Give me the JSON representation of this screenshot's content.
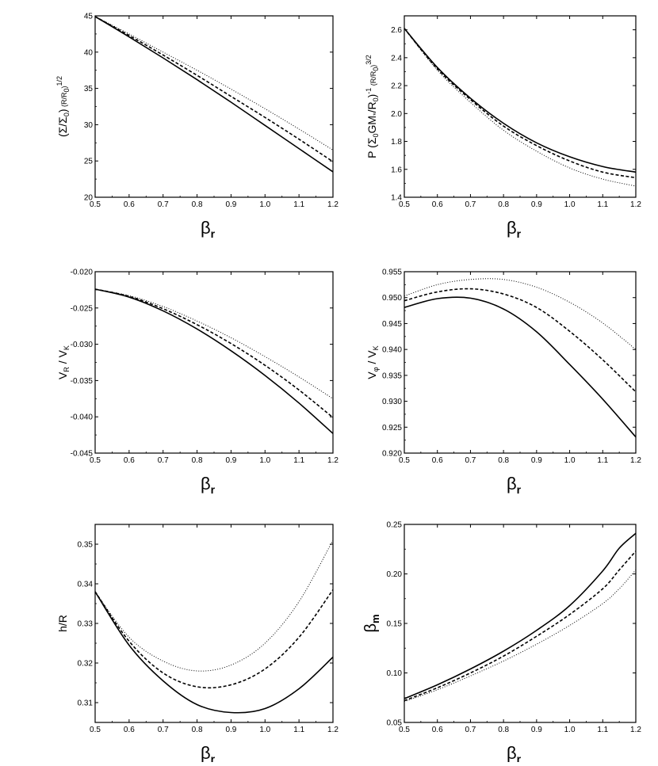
{
  "chart_data": [
    {
      "type": "line",
      "xlabel": "βr",
      "ylabel": "(Σ/Σ0) (R/R0)1/2",
      "xlim": [
        0.5,
        1.2
      ],
      "ylim": [
        20,
        45
      ],
      "xticks": [
        "0.5",
        "0.6",
        "0.7",
        "0.8",
        "0.9",
        "1.0",
        "1.1",
        "1.2"
      ],
      "yticks": [
        "20",
        "25",
        "30",
        "35",
        "40",
        "45"
      ],
      "x": [
        0.5,
        0.6,
        0.7,
        0.8,
        0.9,
        1.0,
        1.1,
        1.2
      ],
      "series": [
        {
          "style": "solid",
          "values": [
            44.9,
            42.1,
            39.2,
            36.2,
            33.1,
            29.9,
            26.7,
            23.5
          ]
        },
        {
          "style": "dashed",
          "values": [
            44.9,
            42.3,
            39.6,
            36.8,
            33.9,
            31.0,
            28.0,
            24.9
          ]
        },
        {
          "style": "dotted",
          "values": [
            44.9,
            42.5,
            40.0,
            37.5,
            34.9,
            32.2,
            29.4,
            26.5
          ]
        }
      ]
    },
    {
      "type": "line",
      "xlabel": "βr",
      "ylabel": "P (Σ0GM*/R0)-1 (R/R0)3/2",
      "xlim": [
        0.5,
        1.2
      ],
      "ylim": [
        1.4,
        2.7
      ],
      "xticks": [
        "0.5",
        "0.6",
        "0.7",
        "0.8",
        "0.9",
        "1.0",
        "1.1",
        "1.2"
      ],
      "yticks": [
        "1.4",
        "1.6",
        "1.8",
        "2.0",
        "2.2",
        "2.4",
        "2.6"
      ],
      "x": [
        0.5,
        0.6,
        0.7,
        0.8,
        0.9,
        1.0,
        1.1,
        1.2
      ],
      "series": [
        {
          "style": "solid",
          "values": [
            2.61,
            2.33,
            2.11,
            1.93,
            1.79,
            1.69,
            1.62,
            1.58
          ]
        },
        {
          "style": "dashed",
          "values": [
            2.61,
            2.32,
            2.1,
            1.91,
            1.77,
            1.66,
            1.58,
            1.54
          ]
        },
        {
          "style": "dotted",
          "values": [
            2.61,
            2.31,
            2.08,
            1.88,
            1.73,
            1.61,
            1.53,
            1.48
          ]
        }
      ]
    },
    {
      "type": "line",
      "xlabel": "βr",
      "ylabel": "VR / VK",
      "xlim": [
        0.5,
        1.2
      ],
      "ylim": [
        -0.045,
        -0.02
      ],
      "xticks": [
        "0.5",
        "0.6",
        "0.7",
        "0.8",
        "0.9",
        "1.0",
        "1.1",
        "1.2"
      ],
      "yticks": [
        "-0.045",
        "-0.040",
        "-0.035",
        "-0.030",
        "-0.025",
        "-0.020"
      ],
      "x": [
        0.5,
        0.6,
        0.7,
        0.8,
        0.9,
        1.0,
        1.1,
        1.2
      ],
      "series": [
        {
          "style": "solid",
          "values": [
            -0.0224,
            -0.0235,
            -0.0254,
            -0.0279,
            -0.0309,
            -0.0343,
            -0.0381,
            -0.0423
          ]
        },
        {
          "style": "dashed",
          "values": [
            -0.0224,
            -0.0234,
            -0.0251,
            -0.0273,
            -0.0299,
            -0.0329,
            -0.0363,
            -0.0401
          ]
        },
        {
          "style": "dotted",
          "values": [
            -0.0224,
            -0.0233,
            -0.0248,
            -0.0268,
            -0.0291,
            -0.0317,
            -0.0345,
            -0.0375
          ]
        }
      ]
    },
    {
      "type": "line",
      "xlabel": "βr",
      "ylabel": "Vφ / VK",
      "xlim": [
        0.5,
        1.2
      ],
      "ylim": [
        0.92,
        0.955
      ],
      "xticks": [
        "0.5",
        "0.6",
        "0.7",
        "0.8",
        "0.9",
        "1.0",
        "1.1",
        "1.2"
      ],
      "yticks": [
        "0.920",
        "0.925",
        "0.930",
        "0.935",
        "0.940",
        "0.945",
        "0.950",
        "0.955"
      ],
      "x": [
        0.5,
        0.6,
        0.7,
        0.8,
        0.9,
        1.0,
        1.1,
        1.2
      ],
      "series": [
        {
          "style": "solid",
          "values": [
            0.9481,
            0.9498,
            0.9499,
            0.9478,
            0.9434,
            0.9371,
            0.9304,
            0.9231
          ]
        },
        {
          "style": "dashed",
          "values": [
            0.9494,
            0.9511,
            0.9517,
            0.9507,
            0.9481,
            0.9435,
            0.938,
            0.9318
          ]
        },
        {
          "style": "dotted",
          "values": [
            0.9503,
            0.9525,
            0.9535,
            0.9535,
            0.952,
            0.9491,
            0.9451,
            0.94
          ]
        }
      ]
    },
    {
      "type": "line",
      "xlabel": "βr",
      "ylabel": "h/R",
      "xlim": [
        0.5,
        1.2
      ],
      "ylim": [
        0.305,
        0.355
      ],
      "xticks": [
        "0.5",
        "0.6",
        "0.7",
        "0.8",
        "0.9",
        "1.0",
        "1.1",
        "1.2"
      ],
      "yticks": [
        "0.31",
        "0.32",
        "0.33",
        "0.34",
        "0.35"
      ],
      "x": [
        0.5,
        0.6,
        0.7,
        0.8,
        0.9,
        1.0,
        1.1,
        1.2
      ],
      "series": [
        {
          "style": "solid",
          "values": [
            0.338,
            0.3245,
            0.3155,
            0.3095,
            0.3075,
            0.3085,
            0.3135,
            0.3215
          ]
        },
        {
          "style": "dashed",
          "values": [
            0.338,
            0.3255,
            0.3175,
            0.314,
            0.3145,
            0.3185,
            0.3265,
            0.3385
          ]
        },
        {
          "style": "dotted",
          "values": [
            0.338,
            0.3265,
            0.3205,
            0.318,
            0.3195,
            0.325,
            0.3355,
            0.351
          ]
        }
      ]
    },
    {
      "type": "line",
      "xlabel": "βr",
      "ylabel": "βm",
      "xlim": [
        0.5,
        1.2
      ],
      "ylim": [
        0.05,
        0.25
      ],
      "xticks": [
        "0.5",
        "0.6",
        "0.7",
        "0.8",
        "0.9",
        "1.0",
        "1.1",
        "1.2"
      ],
      "yticks": [
        "0.05",
        "0.10",
        "0.15",
        "0.20",
        "0.25"
      ],
      "x": [
        0.5,
        0.6,
        0.7,
        0.8,
        0.9,
        1.0,
        1.1,
        1.15,
        1.2
      ],
      "series": [
        {
          "style": "solid",
          "values": [
            0.074,
            0.088,
            0.104,
            0.122,
            0.143,
            0.168,
            0.203,
            0.226,
            0.241
          ]
        },
        {
          "style": "dashed",
          "values": [
            0.072,
            0.085,
            0.1,
            0.117,
            0.137,
            0.159,
            0.185,
            0.204,
            0.223
          ]
        },
        {
          "style": "dotted",
          "values": [
            0.071,
            0.083,
            0.097,
            0.112,
            0.129,
            0.148,
            0.17,
            0.185,
            0.204
          ]
        }
      ]
    }
  ]
}
